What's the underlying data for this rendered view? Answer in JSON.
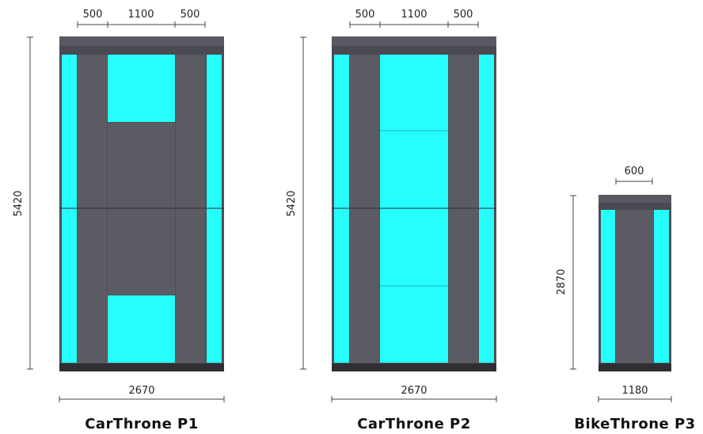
{
  "colors": {
    "glass": "#26FDFD",
    "panel": "#5B5B64",
    "frame": "#4A4A52",
    "base": "#2E2E33",
    "line": "#444444"
  },
  "models": [
    {
      "name": "CarThrone P1",
      "height_dim": "5420",
      "width_dim": "2670",
      "top_dims": [
        "500",
        "1100",
        "500"
      ]
    },
    {
      "name": "CarThrone P2",
      "height_dim": "5420",
      "width_dim": "2670",
      "top_dims": [
        "500",
        "1100",
        "500"
      ]
    },
    {
      "name": "BikeThrone P3",
      "height_dim": "2870",
      "width_dim": "1180",
      "top_dims": [
        "600"
      ]
    }
  ]
}
